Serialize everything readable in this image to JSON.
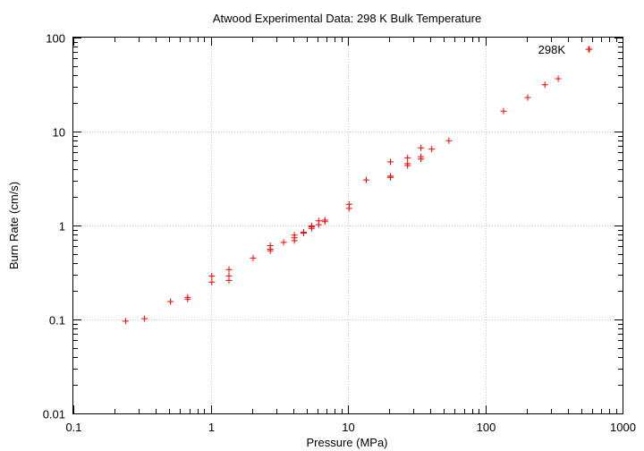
{
  "chart_data": {
    "type": "scatter",
    "title": "Atwood Experimental Data: 298 K Bulk Temperature",
    "xlabel": "Pressure (MPa)",
    "ylabel": "Burn Rate (cm/s)",
    "x_scale": "log",
    "y_scale": "log",
    "xlim": [
      0.1,
      1000
    ],
    "ylim": [
      0.01,
      100
    ],
    "x_ticks": [
      0.1,
      1,
      10,
      100,
      1000
    ],
    "x_tick_labels": [
      "0.1",
      "1",
      "10",
      "100",
      "1000"
    ],
    "y_ticks": [
      0.01,
      0.1,
      1,
      10,
      100
    ],
    "y_tick_labels": [
      "0.01",
      "0.1",
      "1",
      "10",
      "100"
    ],
    "grid": true,
    "legend_position": "top-right",
    "marker": "plus",
    "series": [
      {
        "name": "298K",
        "color": "#ff0000",
        "points": [
          [
            0.24,
            0.096
          ],
          [
            0.33,
            0.102
          ],
          [
            0.51,
            0.155
          ],
          [
            0.68,
            0.165
          ],
          [
            0.68,
            0.172
          ],
          [
            1.02,
            0.25
          ],
          [
            1.02,
            0.29
          ],
          [
            1.36,
            0.26
          ],
          [
            1.36,
            0.29
          ],
          [
            1.36,
            0.34
          ],
          [
            2.04,
            0.45
          ],
          [
            2.72,
            0.54
          ],
          [
            2.72,
            0.56
          ],
          [
            2.72,
            0.61
          ],
          [
            3.4,
            0.66
          ],
          [
            4.08,
            0.69
          ],
          [
            4.08,
            0.74
          ],
          [
            4.08,
            0.79
          ],
          [
            4.76,
            0.83
          ],
          [
            4.76,
            0.85
          ],
          [
            5.44,
            0.93
          ],
          [
            5.44,
            0.97
          ],
          [
            5.44,
            0.99
          ],
          [
            6.12,
            1.02
          ],
          [
            6.12,
            1.12
          ],
          [
            6.8,
            1.1
          ],
          [
            6.8,
            1.14
          ],
          [
            10.2,
            1.52
          ],
          [
            10.2,
            1.68
          ],
          [
            13.6,
            3.05
          ],
          [
            20.4,
            3.25
          ],
          [
            20.4,
            3.35
          ],
          [
            20.4,
            4.75
          ],
          [
            27.2,
            4.35
          ],
          [
            27.2,
            4.55
          ],
          [
            27.2,
            5.25
          ],
          [
            34.0,
            5.1
          ],
          [
            34.0,
            5.4
          ],
          [
            34.0,
            6.7
          ],
          [
            40.8,
            6.5
          ],
          [
            54.4,
            8.0
          ],
          [
            136,
            16.5
          ],
          [
            204,
            23.0
          ],
          [
            272,
            31.5
          ],
          [
            340,
            36.5
          ],
          [
            566,
            75.0
          ]
        ]
      }
    ]
  }
}
